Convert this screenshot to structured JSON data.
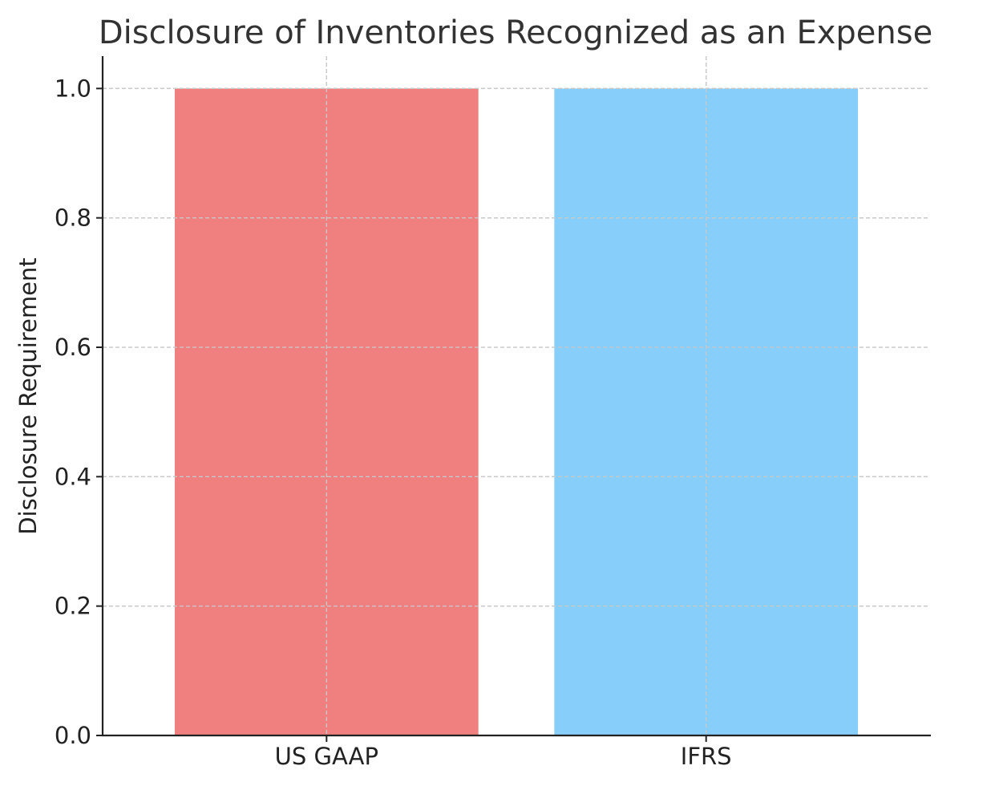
{
  "chart_data": {
    "type": "bar",
    "title": "Disclosure of Inventories Recognized as an Expense",
    "xlabel": "",
    "ylabel": "Disclosure Requirement",
    "categories": [
      "US GAAP",
      "IFRS"
    ],
    "values": [
      1,
      1
    ],
    "colors": [
      "#f08080",
      "#87cefa"
    ],
    "ylim": [
      0,
      1.05
    ],
    "yticks": [
      0.0,
      0.2,
      0.4,
      0.6,
      0.8,
      1.0
    ],
    "ytick_labels": [
      "0.0",
      "0.2",
      "0.4",
      "0.6",
      "0.8",
      "1.0"
    ],
    "grid": true,
    "grid_color": "#c8c8c8",
    "legend": "none"
  }
}
